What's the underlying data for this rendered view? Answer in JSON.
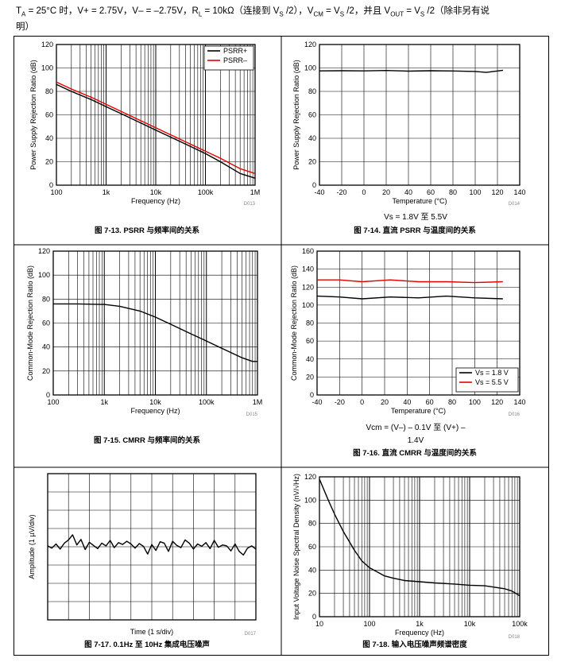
{
  "header": {
    "line1": "T_A = 25°C 时，V+ = 2.75V，V– = –2.75V，R_L = 10kΩ（连接到 V_S /2），V_CM = V_S /2，并且 V_OUT = V_S /2（除非另有说",
    "line2": "明）"
  },
  "panels": [
    {
      "caption": "图 7-13. PSRR 与频率间的关系",
      "code": "D013"
    },
    {
      "caption": "图 7-14. 直流 PSRR 与温度间的关系",
      "code": "D014",
      "note": "V_S = 1.8V 至 5.5V"
    },
    {
      "caption": "图 7-15. CMRR 与频率间的关系",
      "code": "D015"
    },
    {
      "caption": "图 7-16. 直流 CMRR 与温度间的关系",
      "code": "D016",
      "note_line1": "V_CM = (V–) – 0.1V 至 (V+) –",
      "note_line2": "1.4V"
    },
    {
      "caption": "图 7-17. 0.1Hz 至 10Hz 集成电压噪声",
      "code": "D017"
    },
    {
      "caption": "图 7-18. 输入电压噪声频谱密度",
      "code": "D018"
    }
  ],
  "chart_data": [
    {
      "type": "line",
      "xlabel": "Frequency (Hz)",
      "ylabel": "Power Supply Rejection Ratio (dB)",
      "xscale": "log",
      "xlim": [
        100,
        1000000
      ],
      "ylim": [
        0,
        120
      ],
      "xticks": [
        "100",
        "1k",
        "10k",
        "100k",
        "1M"
      ],
      "yticks": [
        0,
        20,
        40,
        60,
        80,
        100,
        120
      ],
      "legend": "top-right",
      "grid": true,
      "series": [
        {
          "name": "PSRR+",
          "color": "#000000",
          "x": [
            100,
            200,
            500,
            1000,
            2000,
            5000,
            10000,
            20000,
            50000,
            100000,
            200000,
            500000,
            1000000
          ],
          "y": [
            86,
            80,
            73,
            67,
            61,
            53,
            47,
            41,
            33,
            27,
            20,
            10,
            6
          ]
        },
        {
          "name": "PSRR–",
          "color": "#e60000",
          "x": [
            100,
            200,
            500,
            1000,
            2000,
            5000,
            10000,
            20000,
            50000,
            100000,
            200000,
            500000,
            1000000
          ],
          "y": [
            88,
            82,
            75,
            69,
            63,
            55,
            49,
            43,
            35,
            29,
            23,
            14,
            10
          ]
        }
      ]
    },
    {
      "type": "line",
      "xlabel": "Temperature (°C)",
      "ylabel": "Power Supply Rejection Ratio (dB)",
      "xlim": [
        -40,
        140
      ],
      "ylim": [
        0,
        120
      ],
      "xticks": [
        -40,
        -20,
        0,
        20,
        40,
        60,
        80,
        100,
        120,
        140
      ],
      "yticks": [
        0,
        20,
        40,
        60,
        80,
        100,
        120
      ],
      "grid": true,
      "series": [
        {
          "color": "#000000",
          "x": [
            -40,
            -20,
            0,
            20,
            40,
            60,
            80,
            100,
            110,
            125
          ],
          "y": [
            97.5,
            97.6,
            97.5,
            97.8,
            97.3,
            97.6,
            97.4,
            97.0,
            96.2,
            98.0
          ]
        }
      ]
    },
    {
      "type": "line",
      "xlabel": "Frequency (Hz)",
      "ylabel": "Common-Mode Rejection Ratio (dB)",
      "xscale": "log",
      "xlim": [
        100,
        1000000
      ],
      "ylim": [
        0,
        120
      ],
      "xticks": [
        "100",
        "1k",
        "10k",
        "100k",
        "1M"
      ],
      "yticks": [
        0,
        20,
        40,
        60,
        80,
        100,
        120
      ],
      "grid": true,
      "series": [
        {
          "color": "#000000",
          "x": [
            100,
            300,
            1000,
            2000,
            5000,
            10000,
            20000,
            50000,
            100000,
            200000,
            500000,
            800000,
            1000000
          ],
          "y": [
            76,
            76,
            75.5,
            74,
            70,
            65,
            59,
            51,
            45,
            39,
            31,
            28,
            28
          ]
        }
      ]
    },
    {
      "type": "line",
      "xlabel": "Temperature (°C)",
      "ylabel": "Common-Mode Rejection Ratio (dB)",
      "xlim": [
        -40,
        140
      ],
      "ylim": [
        0,
        160
      ],
      "xticks": [
        -40,
        -20,
        0,
        20,
        40,
        60,
        80,
        100,
        120,
        140
      ],
      "yticks": [
        0,
        20,
        40,
        60,
        80,
        100,
        120,
        140,
        160
      ],
      "legend": "bottom-right",
      "grid": true,
      "series": [
        {
          "name": "V_S = 1.8 V",
          "color": "#000000",
          "x": [
            -40,
            -20,
            0,
            25,
            50,
            75,
            100,
            125
          ],
          "y": [
            110,
            109,
            107,
            109,
            108,
            110,
            108,
            107
          ]
        },
        {
          "name": "V_S = 5.5 V",
          "color": "#e60000",
          "x": [
            -40,
            -20,
            0,
            25,
            50,
            75,
            100,
            125
          ],
          "y": [
            128,
            128,
            126,
            128,
            126,
            126,
            125,
            126
          ]
        }
      ]
    },
    {
      "type": "line",
      "xlabel": "Time (1 s/div)",
      "ylabel": "Amplitude (1 µV/div)",
      "grid": true,
      "divisions_x": 10,
      "divisions_y": 8,
      "series": [
        {
          "color": "#000000",
          "x": [
            0,
            0.2,
            0.4,
            0.6,
            0.8,
            1.0,
            1.2,
            1.4,
            1.6,
            1.8,
            2.0,
            2.2,
            2.4,
            2.6,
            2.8,
            3.0,
            3.2,
            3.4,
            3.6,
            3.8,
            4.0,
            4.2,
            4.4,
            4.6,
            4.8,
            5.0,
            5.2,
            5.4,
            5.6,
            5.8,
            6.0,
            6.2,
            6.4,
            6.6,
            6.8,
            7.0,
            7.2,
            7.4,
            7.6,
            7.8,
            8.0,
            8.2,
            8.4,
            8.6,
            8.8,
            9.0,
            9.2,
            9.4,
            9.6,
            9.8,
            10.0
          ],
          "y": [
            0.2,
            -0.3,
            0.6,
            -0.5,
            0.8,
            1.5,
            2.6,
            0.4,
            1.6,
            -0.6,
            1.0,
            0.3,
            -0.4,
            0.8,
            0.2,
            1.4,
            -0.2,
            0.9,
            0.5,
            1.2,
            0.6,
            -0.3,
            0.7,
            0.1,
            -1.6,
            0.5,
            -0.8,
            1.1,
            0.8,
            -1.0,
            1.2,
            0.3,
            -0.2,
            1.5,
            0.8,
            -0.5,
            0.6,
            0.1,
            0.9,
            -0.4,
            1.4,
            -0.1,
            0.4,
            0.2,
            -0.9,
            0.6,
            -1.0,
            -1.8,
            -0.3,
            0.2,
            -0.5
          ]
        }
      ]
    },
    {
      "type": "line",
      "xlabel": "Frequency (Hz)",
      "ylabel": "Input Voltage Noise Spectral Density (nV/√Hz)",
      "xscale": "log",
      "xlim": [
        10,
        100000
      ],
      "ylim": [
        0,
        120
      ],
      "xticks": [
        "10",
        "100",
        "1k",
        "10k",
        "100k"
      ],
      "yticks": [
        0,
        20,
        40,
        60,
        80,
        100,
        120
      ],
      "grid": true,
      "series": [
        {
          "color": "#000000",
          "x": [
            10,
            15,
            20,
            30,
            50,
            70,
            100,
            200,
            300,
            500,
            1000,
            2000,
            5000,
            10000,
            20000,
            50000,
            70000,
            100000
          ],
          "y": [
            118,
            100,
            88,
            73,
            57,
            48,
            42,
            35,
            33,
            31,
            30,
            29,
            28,
            27,
            26.5,
            24,
            22,
            18
          ]
        }
      ]
    }
  ]
}
